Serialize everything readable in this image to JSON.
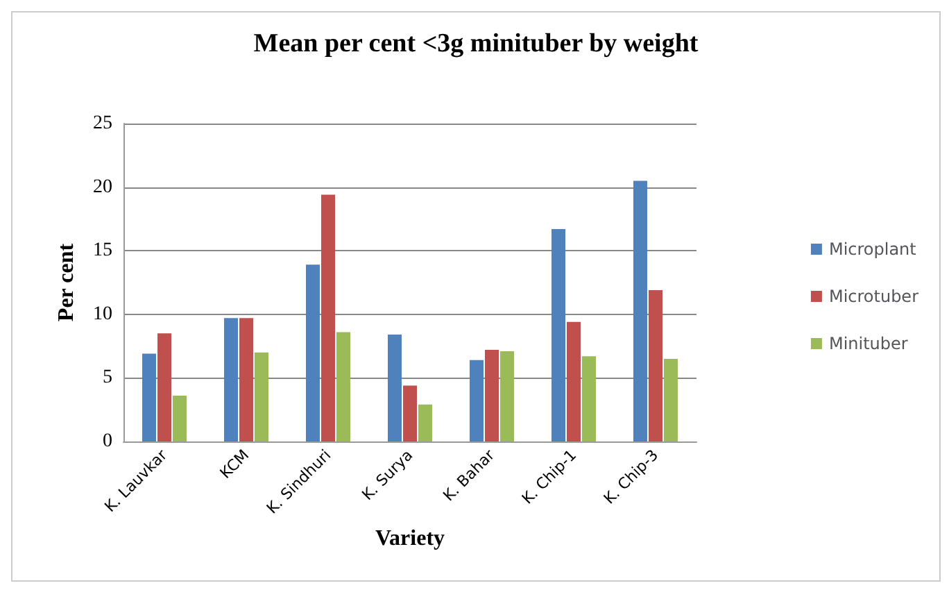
{
  "chart_data": {
    "type": "bar",
    "title": "Mean per cent <3g minituber by weight",
    "xlabel": "Variety",
    "ylabel": "Per cent",
    "categories": [
      "K. Lauvkar",
      "KCM",
      "K. Sindhuri",
      "K. Surya",
      "K. Bahar",
      "K. Chip-1",
      "K. Chip-3"
    ],
    "series": [
      {
        "name": "Microplant",
        "color": "#4f81bd",
        "values": [
          6.9,
          9.7,
          13.9,
          8.4,
          6.4,
          16.7,
          20.5
        ]
      },
      {
        "name": "Microtuber",
        "color": "#c0504d",
        "values": [
          8.5,
          9.7,
          19.4,
          4.4,
          7.2,
          9.4,
          11.9
        ]
      },
      {
        "name": "Minituber",
        "color": "#9bbb59",
        "values": [
          3.6,
          7.0,
          8.6,
          2.9,
          7.1,
          6.7,
          6.5
        ]
      }
    ],
    "ylim": [
      0,
      25
    ],
    "yticks": [
      0,
      5,
      10,
      15,
      20,
      25
    ],
    "grid": "y",
    "legend": "right"
  }
}
